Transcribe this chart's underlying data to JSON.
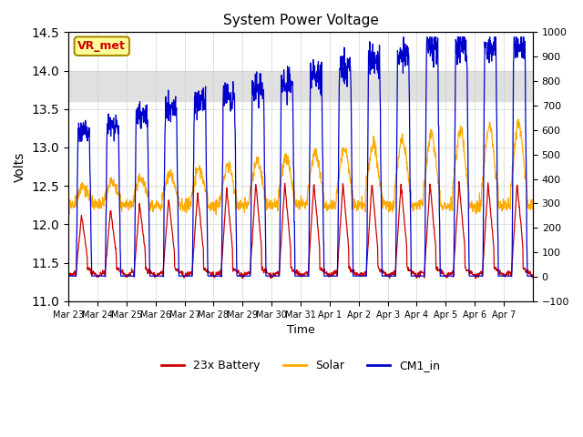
{
  "title": "System Power Voltage",
  "xlabel": "Time",
  "ylabel": "Volts",
  "ylim_left": [
    11.0,
    14.5
  ],
  "ylim_right": [
    -100,
    1000
  ],
  "yticks_left": [
    11.0,
    11.5,
    12.0,
    12.5,
    13.0,
    13.5,
    14.0,
    14.5
  ],
  "yticks_right": [
    -100,
    0,
    100,
    200,
    300,
    400,
    500,
    600,
    700,
    800,
    900,
    1000
  ],
  "shaded_region": [
    13.6,
    14.0
  ],
  "colors": {
    "battery": "#cc0000",
    "solar": "#ffaa00",
    "cm1": "#0000cc",
    "shaded": "#e0e0e0"
  },
  "annotation_text": "VR_met",
  "annotation_color": "#cc0000",
  "annotation_bg": "#ffff99",
  "annotation_border": "#aa8800",
  "legend_labels": [
    "23x Battery",
    "Solar",
    "CM1_in"
  ],
  "n_days": 16,
  "tick_labels": [
    "Mar 23",
    "Mar 24",
    "Mar 25",
    "Mar 26",
    "Mar 27",
    "Mar 28",
    "Mar 29",
    "Mar 30",
    "Mar 31",
    "Apr 1",
    "Apr 2",
    "Apr 3",
    "Apr 4",
    "Apr 5",
    "Apr 6",
    "Apr 7"
  ]
}
